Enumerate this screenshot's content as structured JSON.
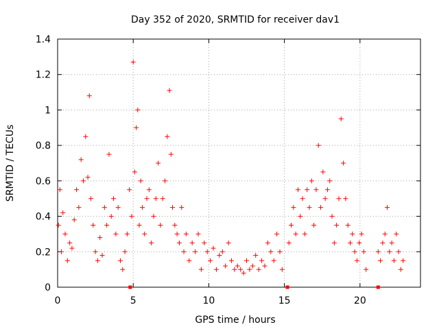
{
  "chart_data": {
    "type": "scatter",
    "title": "Day 352 of 2020, SRMTID for receiver dav1",
    "xlabel": "GPS time / hours",
    "ylabel": "SRMTID / TECUs",
    "xlim": [
      0,
      24
    ],
    "ylim": [
      0,
      1.4
    ],
    "grid": true,
    "marker": "+",
    "color": "#ff0000",
    "x_ticks": [
      0,
      5,
      10,
      15,
      20
    ],
    "x_tick_labels": [
      "0",
      "5",
      "10",
      "15",
      "20"
    ],
    "y_ticks": [
      0,
      0.2,
      0.4,
      0.6,
      0.8,
      1.0,
      1.2,
      1.4
    ],
    "y_tick_labels": [
      "0",
      "0.2",
      "0.4",
      "0.6",
      "0.8",
      "1",
      "1.2",
      "1.4"
    ],
    "gap_markers_x": [
      4.8,
      15.2,
      21.2
    ],
    "series": [
      {
        "name": "SRMTID",
        "x": [
          0.05,
          0.15,
          0.25,
          0.35,
          0.5,
          0.65,
          0.8,
          0.95,
          1.1,
          1.25,
          1.4,
          1.55,
          1.7,
          1.85,
          2.0,
          2.1,
          2.2,
          2.35,
          2.5,
          2.65,
          2.8,
          2.95,
          3.1,
          3.25,
          3.4,
          3.55,
          3.7,
          3.85,
          4.0,
          4.15,
          4.3,
          4.45,
          4.6,
          4.75,
          4.9,
          5.0,
          5.1,
          5.2,
          5.3,
          5.4,
          5.5,
          5.6,
          5.75,
          5.9,
          6.05,
          6.2,
          6.35,
          6.5,
          6.65,
          6.8,
          6.95,
          7.1,
          7.25,
          7.4,
          7.5,
          7.6,
          7.75,
          7.9,
          8.05,
          8.2,
          8.35,
          8.5,
          8.7,
          8.9,
          9.1,
          9.3,
          9.5,
          9.7,
          9.9,
          10.1,
          10.3,
          10.5,
          10.7,
          10.9,
          11.1,
          11.3,
          11.5,
          11.7,
          11.9,
          12.1,
          12.3,
          12.5,
          12.7,
          12.9,
          13.1,
          13.3,
          13.5,
          13.7,
          13.9,
          14.1,
          14.3,
          14.5,
          14.7,
          14.85,
          15.3,
          15.45,
          15.6,
          15.75,
          15.9,
          16.05,
          16.2,
          16.35,
          16.5,
          16.65,
          16.8,
          16.95,
          17.1,
          17.25,
          17.4,
          17.55,
          17.7,
          17.85,
          18.0,
          18.15,
          18.3,
          18.45,
          18.6,
          18.75,
          18.9,
          19.05,
          19.2,
          19.35,
          19.5,
          19.65,
          19.8,
          19.95,
          20.1,
          20.25,
          20.4,
          21.2,
          21.35,
          21.5,
          21.65,
          21.8,
          21.95,
          22.1,
          22.25,
          22.4,
          22.55,
          22.7,
          22.85
        ],
        "y": [
          0.35,
          0.55,
          0.2,
          0.42,
          0.3,
          0.15,
          0.25,
          0.22,
          0.38,
          0.55,
          0.45,
          0.72,
          0.6,
          0.85,
          0.62,
          1.08,
          0.5,
          0.35,
          0.2,
          0.15,
          0.28,
          0.18,
          0.45,
          0.35,
          0.75,
          0.4,
          0.5,
          0.3,
          0.45,
          0.15,
          0.1,
          0.2,
          0.3,
          0.55,
          0.4,
          1.27,
          0.65,
          0.9,
          1.0,
          0.35,
          0.6,
          0.45,
          0.3,
          0.5,
          0.55,
          0.25,
          0.4,
          0.5,
          0.7,
          0.35,
          0.5,
          0.6,
          0.85,
          1.11,
          0.75,
          0.45,
          0.35,
          0.3,
          0.25,
          0.45,
          0.2,
          0.3,
          0.15,
          0.25,
          0.2,
          0.3,
          0.1,
          0.25,
          0.2,
          0.15,
          0.22,
          0.1,
          0.18,
          0.2,
          0.12,
          0.25,
          0.15,
          0.1,
          0.12,
          0.1,
          0.08,
          0.15,
          0.1,
          0.12,
          0.18,
          0.1,
          0.15,
          0.12,
          0.25,
          0.2,
          0.15,
          0.3,
          0.2,
          0.1,
          0.25,
          0.35,
          0.45,
          0.3,
          0.55,
          0.4,
          0.5,
          0.3,
          0.55,
          0.45,
          0.6,
          0.35,
          0.55,
          0.8,
          0.45,
          0.65,
          0.5,
          0.55,
          0.6,
          0.4,
          0.25,
          0.35,
          0.5,
          0.95,
          0.7,
          0.5,
          0.35,
          0.25,
          0.3,
          0.2,
          0.15,
          0.25,
          0.3,
          0.2,
          0.1,
          0.2,
          0.15,
          0.25,
          0.3,
          0.45,
          0.2,
          0.25,
          0.15,
          0.3,
          0.2,
          0.1,
          0.15
        ]
      }
    ]
  }
}
